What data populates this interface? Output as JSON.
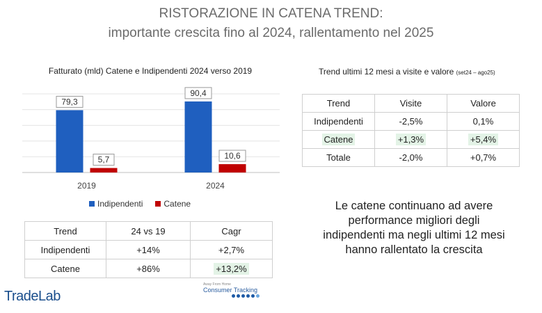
{
  "header": {
    "title_line1": "RISTORAZIONE IN CATENA TREND:",
    "title_line2": "importante crescita fino al 2024, rallentamento nel 2025"
  },
  "chart_data": {
    "type": "bar",
    "title": "Fatturato (mld) Catene e Indipendenti 2024 verso 2019",
    "categories": [
      "2019",
      "2024"
    ],
    "series": [
      {
        "name": "Indipendenti",
        "color": "#1f5fbf",
        "values": [
          79.3,
          90.4
        ],
        "labels": [
          "79,3",
          "90,4"
        ]
      },
      {
        "name": "Catene",
        "color": "#c00000",
        "values": [
          5.7,
          10.6
        ],
        "labels": [
          "5,7",
          "10,6"
        ]
      }
    ],
    "ylim": [
      0,
      100
    ],
    "grid": true,
    "legend": "bottom"
  },
  "growth_table": {
    "headers": [
      "Trend",
      "24 vs 19",
      "Cagr"
    ],
    "rows": [
      [
        "Indipendenti",
        "+14%",
        "+2,7%"
      ],
      [
        "Catene",
        "+86%",
        "+13,2%"
      ]
    ]
  },
  "trend_table": {
    "title": "Trend ultimi 12 mesi a visite e valore",
    "period": "(set24 – ago25)",
    "headers": [
      "Trend",
      "Visite",
      "Valore"
    ],
    "rows": [
      [
        "Indipendenti",
        "-2,5%",
        "0,1%"
      ],
      [
        "Catene",
        "+1,3%",
        "+5,4%"
      ],
      [
        "Totale",
        "-2,0%",
        "+0,7%"
      ]
    ]
  },
  "note": {
    "lines": [
      "Le catene continuano ad avere",
      "performance migliori degli",
      "indipendenti ma negli ultimi 12 mesi",
      "hanno rallentato la crescita"
    ]
  },
  "logos": {
    "tradelab": "TradeLab",
    "consumer_tracking": "Consumer Tracking",
    "consumer_small": "Away From Home"
  }
}
